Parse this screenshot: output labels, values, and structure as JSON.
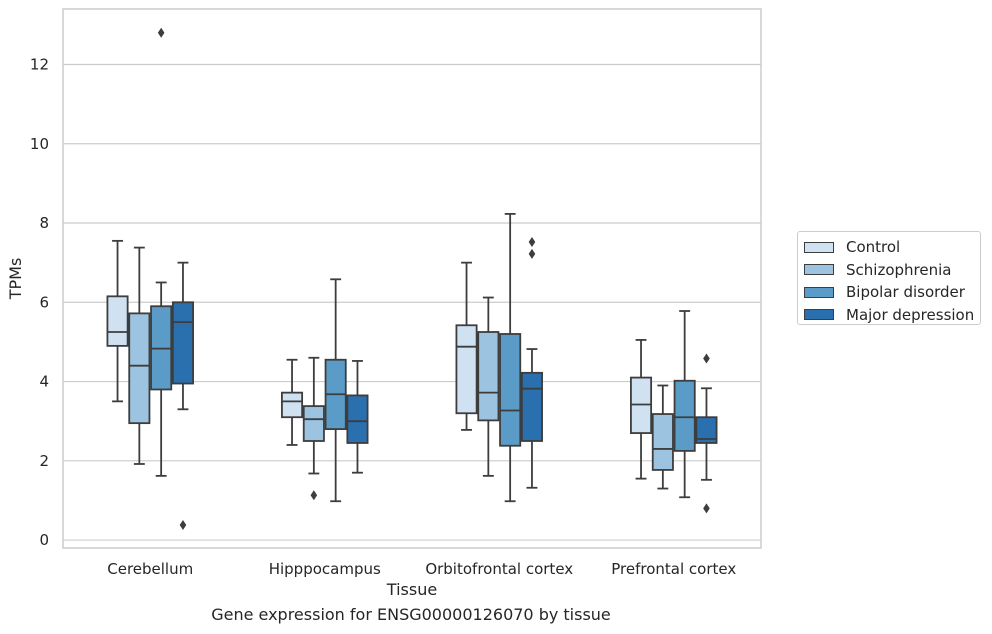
{
  "chart_data": {
    "type": "box",
    "title": "",
    "xlabel": "Tissue",
    "ylabel": "TPMs",
    "caption": "Gene expression for ENSG00000126070 by tissue",
    "ylim": [
      -0.2,
      13.4
    ],
    "yticks": [
      0,
      2,
      4,
      6,
      8,
      10,
      12
    ],
    "grid": "horizontal",
    "legend_position": "right",
    "categories": [
      "Cerebellum",
      "Hipppocampus",
      "Orbitofrontal cortex",
      "Prefrontal cortex"
    ],
    "series": [
      {
        "name": "Control",
        "color": "#d0e1f2",
        "boxes": [
          {
            "whislo": 3.5,
            "q1": 4.9,
            "med": 5.25,
            "q3": 6.15,
            "whishi": 7.55,
            "fliers": []
          },
          {
            "whislo": 2.4,
            "q1": 3.1,
            "med": 3.5,
            "q3": 3.72,
            "whishi": 4.55,
            "fliers": []
          },
          {
            "whislo": 2.78,
            "q1": 3.2,
            "med": 4.88,
            "q3": 5.42,
            "whishi": 7.0,
            "fliers": []
          },
          {
            "whislo": 1.55,
            "q1": 2.7,
            "med": 3.42,
            "q3": 4.1,
            "whishi": 5.05,
            "fliers": []
          }
        ]
      },
      {
        "name": "Schizophrenia",
        "color": "#9cc3df",
        "boxes": [
          {
            "whislo": 1.92,
            "q1": 2.95,
            "med": 4.4,
            "q3": 5.72,
            "whishi": 7.38,
            "fliers": []
          },
          {
            "whislo": 1.68,
            "q1": 2.5,
            "med": 3.05,
            "q3": 3.38,
            "whishi": 4.6,
            "fliers": [
              1.13
            ]
          },
          {
            "whislo": 1.62,
            "q1": 3.02,
            "med": 3.72,
            "q3": 5.25,
            "whishi": 6.12,
            "fliers": []
          },
          {
            "whislo": 1.3,
            "q1": 1.77,
            "med": 2.3,
            "q3": 3.18,
            "whishi": 3.9,
            "fliers": []
          }
        ]
      },
      {
        "name": "Bipolar disorder",
        "color": "#5a9bc7",
        "boxes": [
          {
            "whislo": 1.62,
            "q1": 3.8,
            "med": 4.83,
            "q3": 5.9,
            "whishi": 6.5,
            "fliers": [
              12.8
            ]
          },
          {
            "whislo": 0.98,
            "q1": 2.8,
            "med": 3.68,
            "q3": 4.55,
            "whishi": 6.58,
            "fliers": []
          },
          {
            "whislo": 0.98,
            "q1": 2.38,
            "med": 3.27,
            "q3": 5.2,
            "whishi": 8.23,
            "fliers": []
          },
          {
            "whislo": 1.08,
            "q1": 2.25,
            "med": 3.1,
            "q3": 4.02,
            "whishi": 5.78,
            "fliers": []
          }
        ]
      },
      {
        "name": "Major depression",
        "color": "#2a6fae",
        "boxes": [
          {
            "whislo": 3.3,
            "q1": 3.95,
            "med": 5.5,
            "q3": 6.0,
            "whishi": 7.0,
            "fliers": [
              0.38
            ]
          },
          {
            "whislo": 1.7,
            "q1": 2.45,
            "med": 3.0,
            "q3": 3.65,
            "whishi": 4.52,
            "fliers": []
          },
          {
            "whislo": 1.32,
            "q1": 2.5,
            "med": 3.82,
            "q3": 4.22,
            "whishi": 4.82,
            "fliers": [
              7.22,
              7.52
            ]
          },
          {
            "whislo": 1.52,
            "q1": 2.45,
            "med": 2.55,
            "q3": 3.1,
            "whishi": 3.83,
            "fliers": [
              0.8,
              4.58
            ]
          }
        ]
      }
    ]
  }
}
